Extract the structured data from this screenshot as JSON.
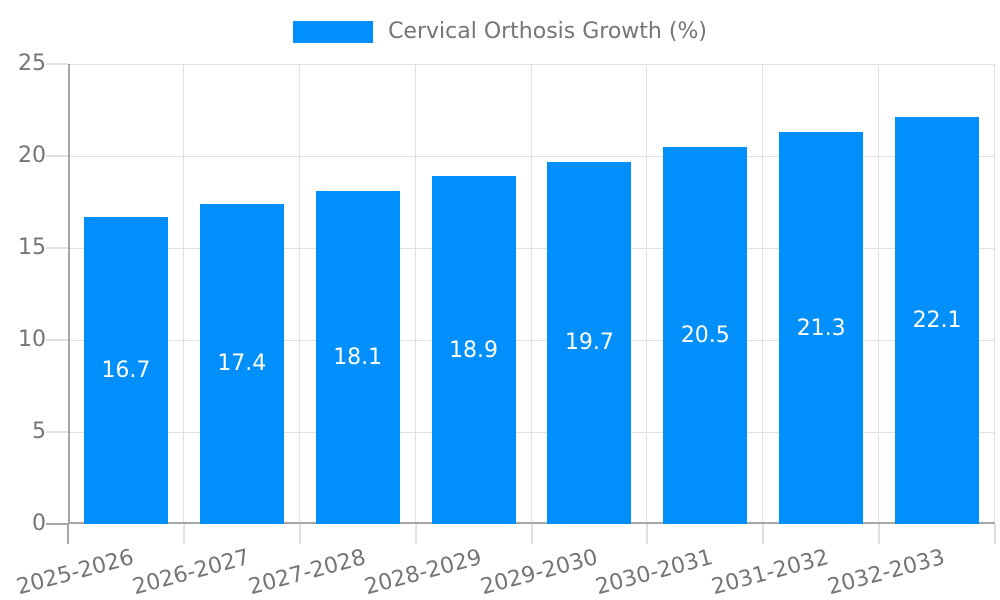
{
  "colors": {
    "bar": "#008ffb",
    "grid": "#e0e0e0",
    "axis": "#a6a6a6",
    "label": "#757575",
    "bar_label": "#ffffff",
    "background": "#ffffff"
  },
  "legend": {
    "label": "Cervical Orthosis Growth (%)"
  },
  "chart_data": {
    "type": "bar",
    "title": "Cervical Orthosis Growth (%)",
    "categories": [
      "2025-2026",
      "2026-2027",
      "2027-2028",
      "2028-2029",
      "2029-2030",
      "2030-2031",
      "2031-2032",
      "2032-2033"
    ],
    "values": [
      16.7,
      17.4,
      18.1,
      18.9,
      19.7,
      20.5,
      21.3,
      22.1
    ],
    "xlabel": "",
    "ylabel": "",
    "ylim": [
      0,
      25
    ],
    "yticks": [
      0,
      5,
      10,
      15,
      20,
      25
    ],
    "grid": true,
    "legend_position": "top-center",
    "data_labels_position": "inside-middle",
    "x_label_rotation_deg": -15
  }
}
